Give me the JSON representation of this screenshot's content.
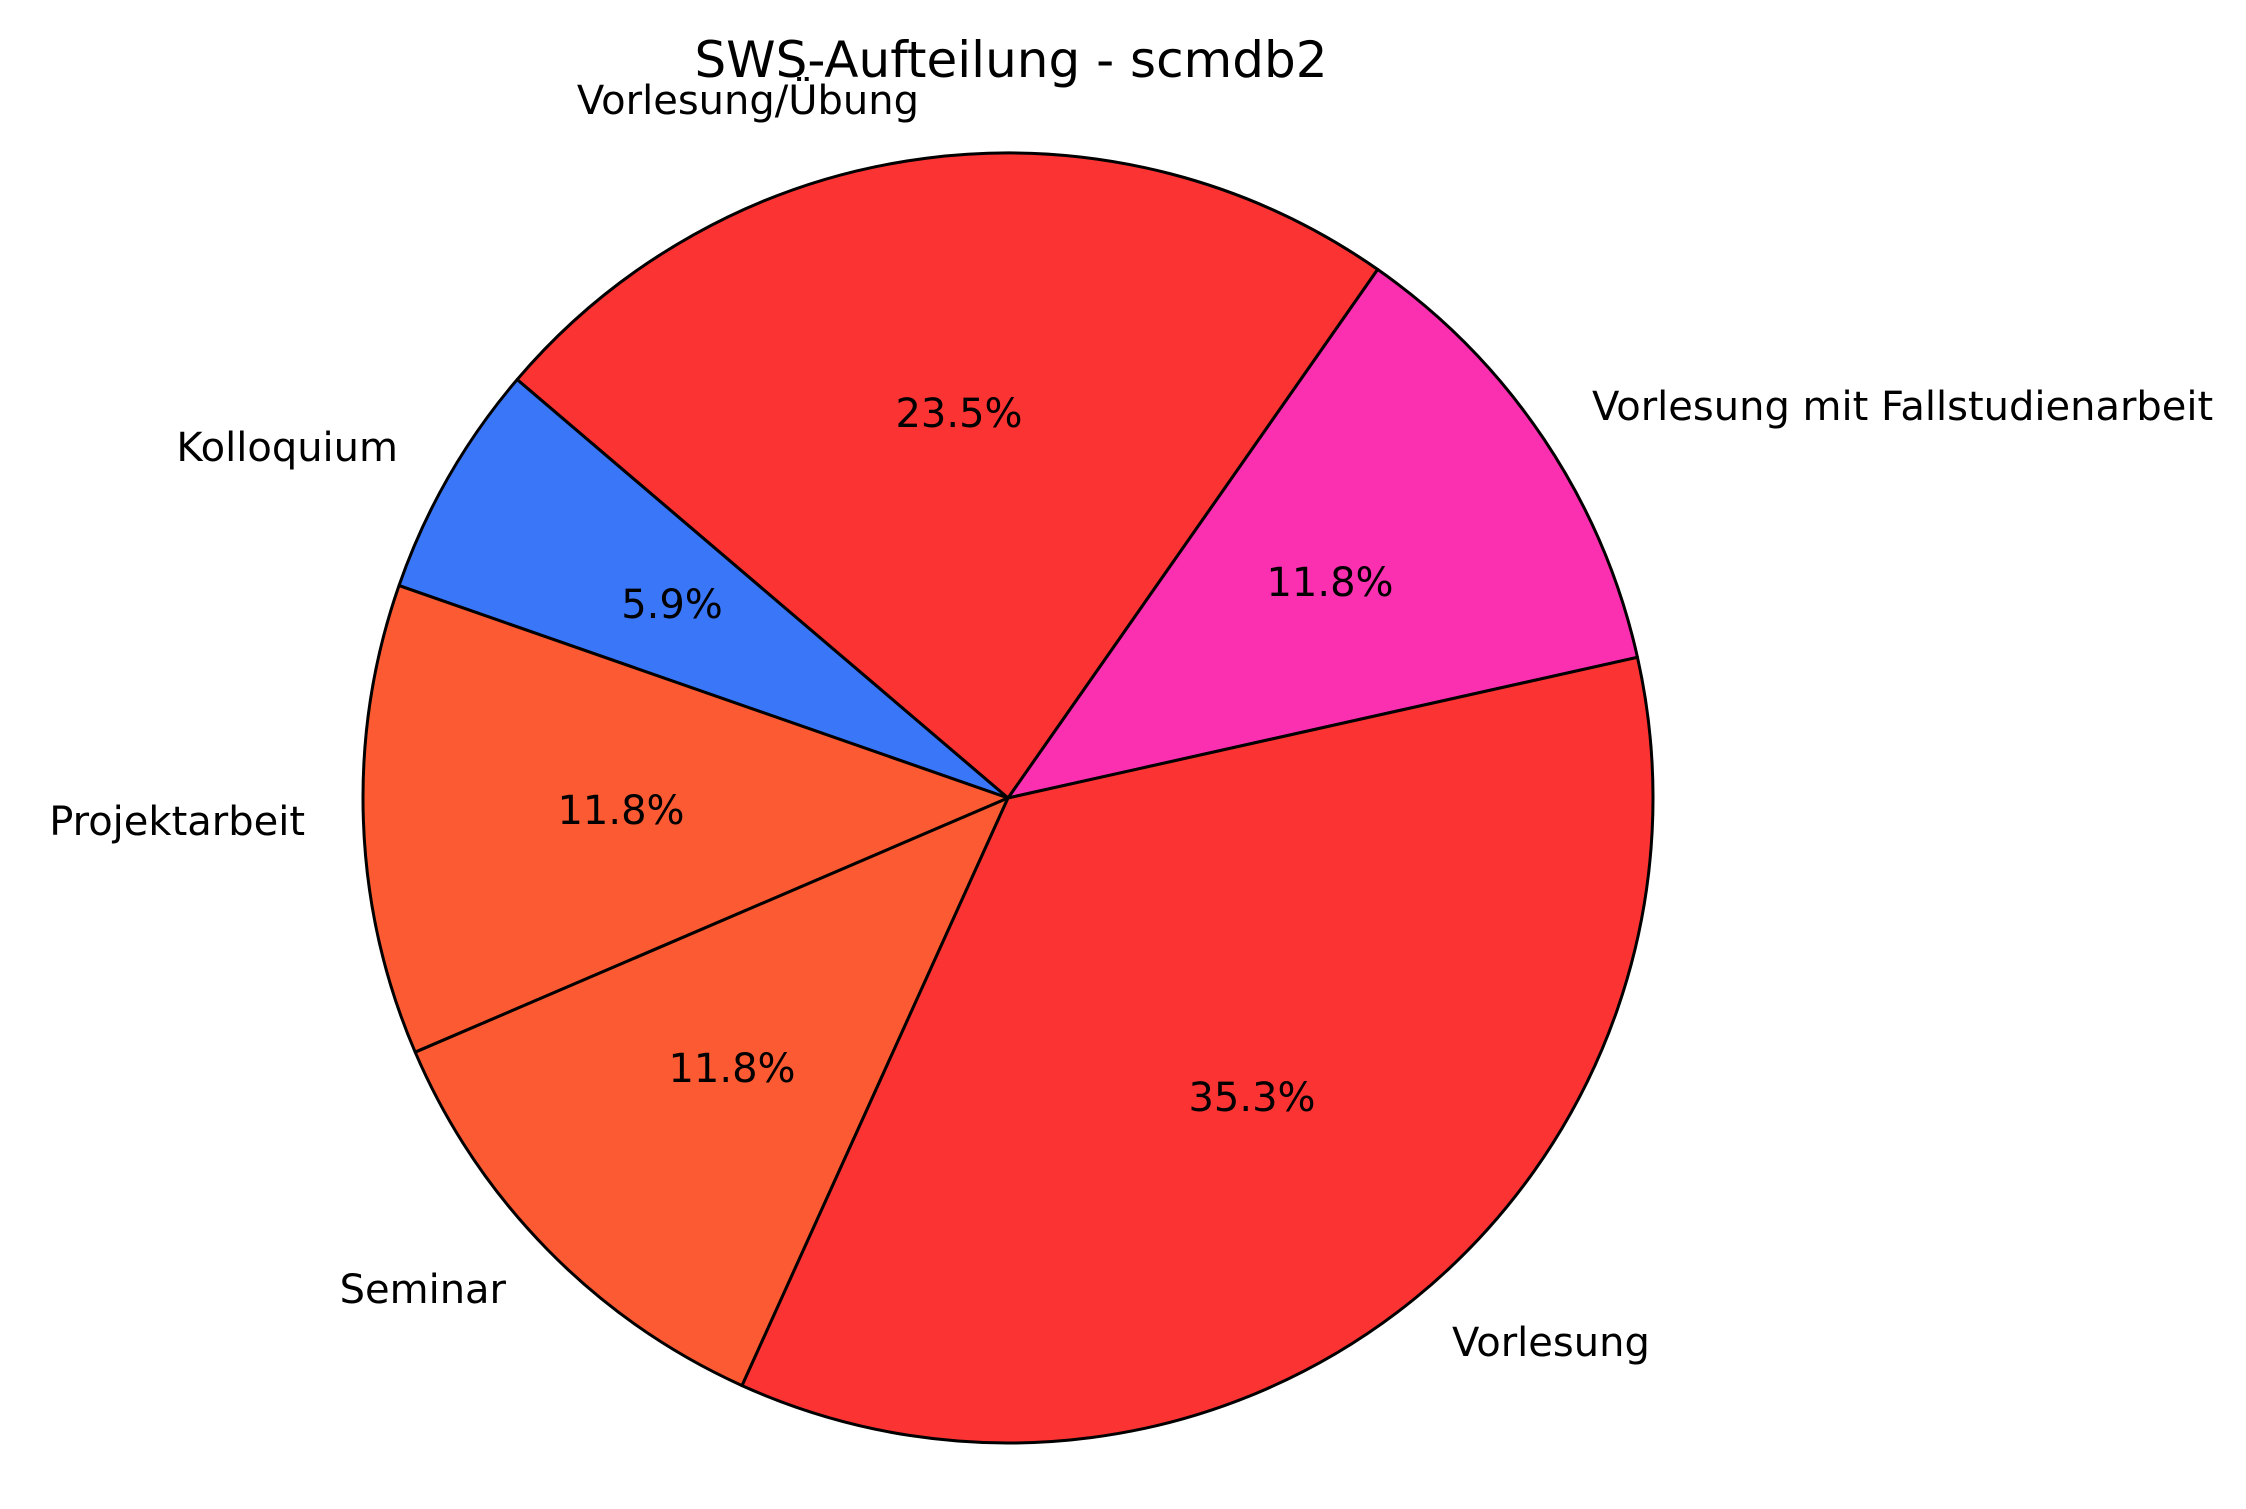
{
  "chart_data": {
    "type": "pie",
    "title": "SWS-Aufteilung - scmdb2",
    "start_angle_deg": 12.6,
    "direction": "ccw",
    "stroke_color": "#000000",
    "background_color": "#ffffff",
    "text_color": "#000000",
    "slices": [
      {
        "label": "Vorlesung mit Fallstudienarbeit",
        "value": 11.8,
        "pct_label": "11.8%",
        "color": "#fa30b0"
      },
      {
        "label": "Vorlesung/Übung",
        "value": 23.5,
        "pct_label": "23.5%",
        "color": "#fc3333"
      },
      {
        "label": "Kolloquium",
        "value": 5.9,
        "pct_label": "5.9%",
        "color": "#3a76f8"
      },
      {
        "label": "Projektarbeit",
        "value": 11.8,
        "pct_label": "11.8%",
        "color": "#fc5a32"
      },
      {
        "label": "Seminar",
        "value": 11.8,
        "pct_label": "11.8%",
        "color": "#fc5a32"
      },
      {
        "label": "Vorlesung",
        "value": 35.3,
        "pct_label": "35.3%",
        "color": "#fc3333"
      }
    ]
  }
}
